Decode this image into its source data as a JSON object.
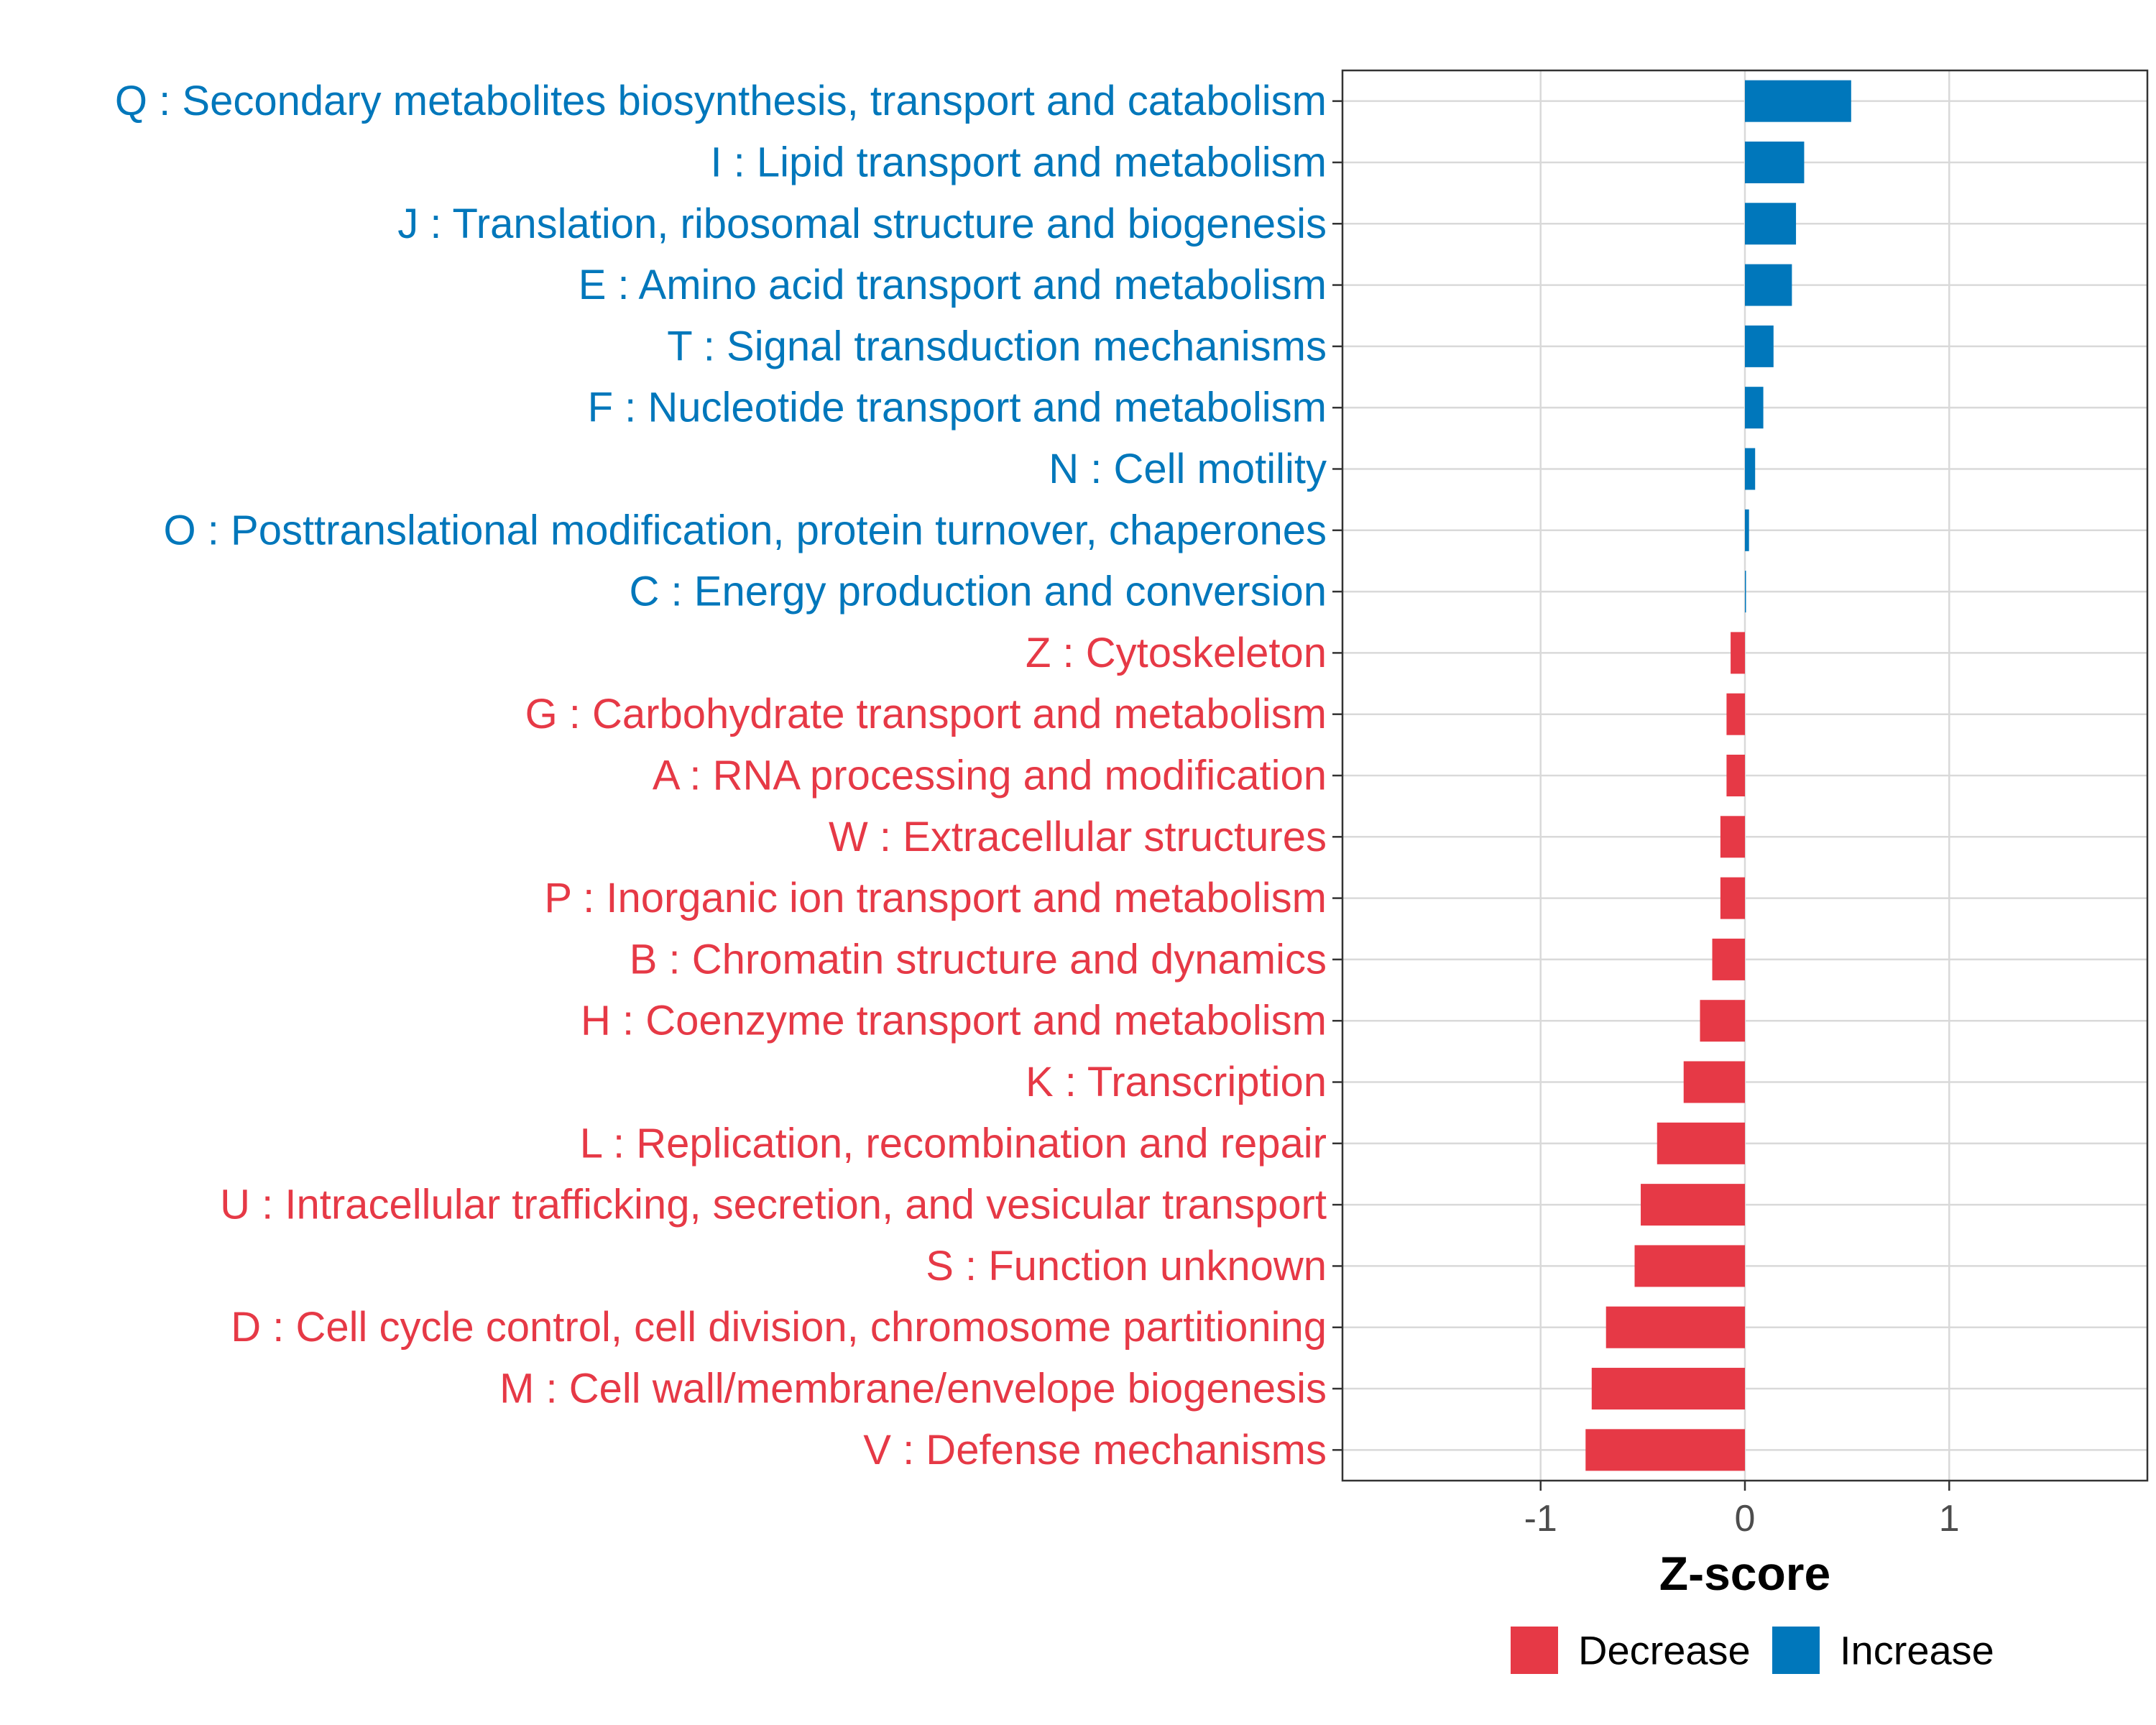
{
  "chart_data": {
    "type": "bar",
    "orientation": "horizontal",
    "title": "",
    "xlabel": "Z-score",
    "ylabel": "",
    "xlim": [
      -1.97,
      1.97
    ],
    "xticks": [
      -1,
      0,
      1
    ],
    "xtick_labels": [
      "-1",
      "0",
      "1"
    ],
    "grid": true,
    "legend_position": "bottom-right",
    "colors": {
      "Decrease": "#e63946",
      "Increase": "#0077bb"
    },
    "legend": [
      {
        "label": "Decrease",
        "color": "#e63946"
      },
      {
        "label": "Increase",
        "color": "#0077bb"
      }
    ],
    "categories": [
      "Q : Secondary metabolites biosynthesis, transport and catabolism",
      "I : Lipid transport and metabolism",
      "J : Translation, ribosomal structure and biogenesis",
      "E : Amino acid transport and metabolism",
      "T : Signal transduction mechanisms",
      "F : Nucleotide transport and metabolism",
      "N : Cell motility",
      "O : Posttranslational modification, protein turnover, chaperones",
      "C : Energy production and conversion",
      "Z : Cytoskeleton",
      "G : Carbohydrate transport and metabolism",
      "A : RNA processing and modification",
      "W : Extracellular structures",
      "P : Inorganic ion transport and metabolism",
      "B : Chromatin structure and dynamics",
      "H : Coenzyme transport and metabolism",
      "K : Transcription",
      "L : Replication, recombination and repair",
      "U : Intracellular trafficking, secretion, and vesicular transport",
      "S : Function unknown",
      "D : Cell cycle control, cell division, chromosome partitioning",
      "M : Cell wall/membrane/envelope biogenesis",
      "V : Defense mechanisms"
    ],
    "values": [
      0.52,
      0.29,
      0.25,
      0.23,
      0.14,
      0.09,
      0.05,
      0.02,
      0.005,
      -0.07,
      -0.09,
      -0.09,
      -0.12,
      -0.12,
      -0.16,
      -0.22,
      -0.3,
      -0.43,
      -0.51,
      -0.54,
      -0.68,
      -0.75,
      -0.78
    ],
    "groups": [
      "Increase",
      "Increase",
      "Increase",
      "Increase",
      "Increase",
      "Increase",
      "Increase",
      "Increase",
      "Increase",
      "Decrease",
      "Decrease",
      "Decrease",
      "Decrease",
      "Decrease",
      "Decrease",
      "Decrease",
      "Decrease",
      "Decrease",
      "Decrease",
      "Decrease",
      "Decrease",
      "Decrease",
      "Decrease"
    ]
  }
}
